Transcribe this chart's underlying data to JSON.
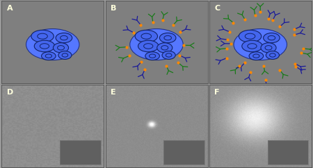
{
  "panel_labels": [
    "A",
    "B",
    "C",
    "D",
    "E",
    "F"
  ],
  "bg_top": "#7f7f7f",
  "bg_bottom": "#898989",
  "cell_color": "#4466ee",
  "cell_ec": "#111144",
  "ab_blue": "#1a1a99",
  "ab_green": "#1a7a1a",
  "dot_orange": "#ff8800",
  "label_color": "#ffffcc",
  "inset_bg": "#606060",
  "fig_width": 4.5,
  "fig_height": 2.42,
  "dpi": 100
}
